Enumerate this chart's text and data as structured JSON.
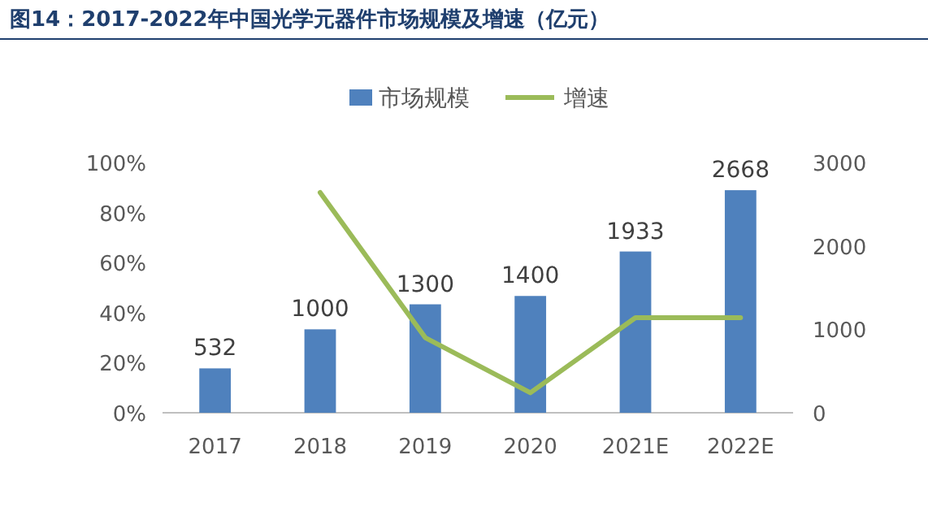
{
  "chart_data": {
    "type": "bar",
    "title": "图14：2017-2022年中国光学元器件市场规模及增速（亿元）",
    "categories": [
      "2017",
      "2018",
      "2019",
      "2020",
      "2021E",
      "2022E"
    ],
    "series": [
      {
        "name": "市场规模",
        "axis": "y2",
        "color": "#4f81bd",
        "values": [
          532,
          1000,
          1300,
          1400,
          1933,
          2668
        ],
        "value_labels": [
          "532",
          "1000",
          "1300",
          "1400",
          "1933",
          "2668"
        ]
      },
      {
        "name": "增速",
        "type": "line",
        "color": "#9bbb59",
        "values": [
          null,
          88,
          30,
          8,
          38,
          38
        ]
      }
    ],
    "ylim": [
      0,
      100
    ],
    "yticks": [
      {
        "value": 0,
        "label": "0%"
      },
      {
        "value": 20,
        "label": "20%"
      },
      {
        "value": 40,
        "label": "40%"
      },
      {
        "value": 60,
        "label": "60%"
      },
      {
        "value": 80,
        "label": "80%"
      },
      {
        "value": 100,
        "label": "100%"
      }
    ],
    "y2lim": [
      0,
      3000
    ],
    "y2ticks": [
      0,
      1000,
      2000,
      3000
    ],
    "grid": false,
    "legend": "top",
    "marker": "none",
    "line_style": "solid"
  }
}
